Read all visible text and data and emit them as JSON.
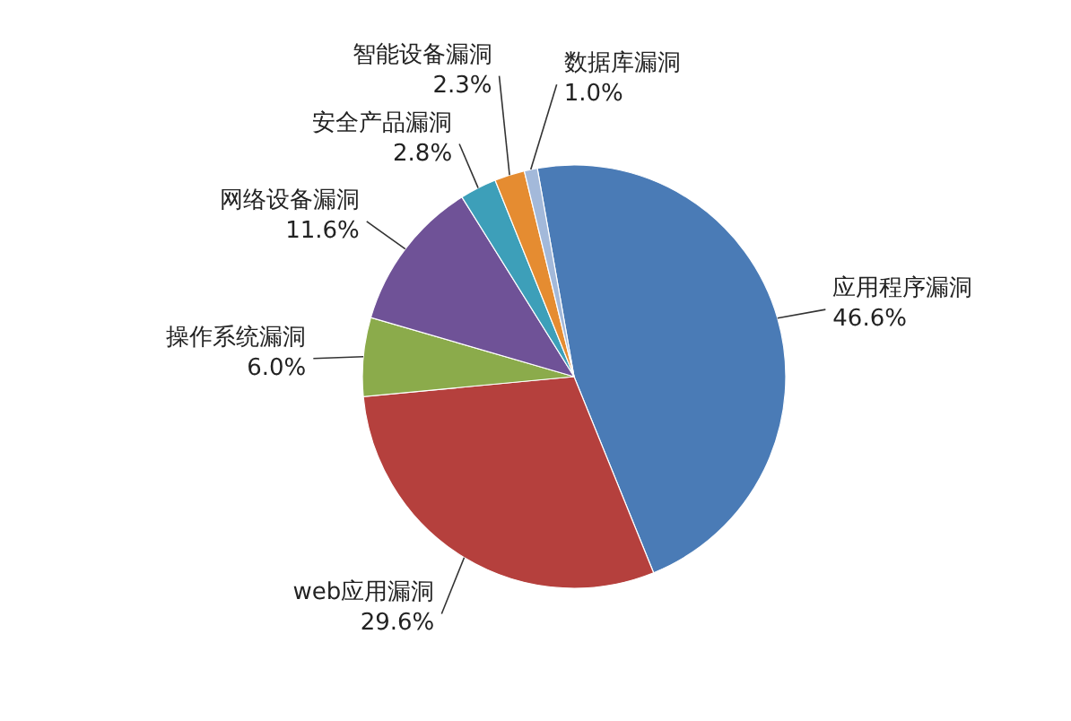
{
  "chart_data": {
    "type": "pie",
    "categories": [
      "应用程序漏洞",
      "web应用漏洞",
      "操作系统漏洞",
      "网络设备漏洞",
      "安全产品漏洞",
      "智能设备漏洞",
      "数据库漏洞"
    ],
    "values": [
      46.6,
      29.6,
      6.0,
      11.6,
      2.8,
      2.3,
      1.0
    ],
    "value_labels": [
      "46.6%",
      "29.6%",
      "6.0%",
      "11.6%",
      "2.8%",
      "2.3%",
      "1.0%"
    ],
    "colors": [
      "#4a7bb6",
      "#b5403d",
      "#8bab4b",
      "#6f5297",
      "#3d9fb9",
      "#e58c31",
      "#a3b9da"
    ]
  }
}
